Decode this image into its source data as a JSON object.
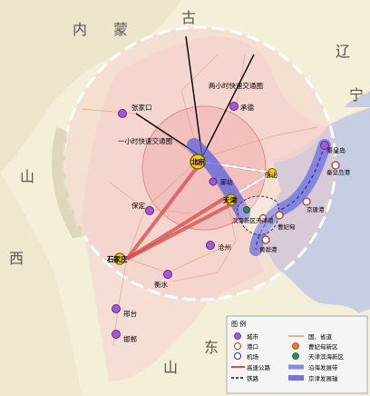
{
  "regions": [
    {
      "key": "nei",
      "text": "内"
    },
    {
      "key": "meng",
      "text": "蒙"
    },
    {
      "key": "gu",
      "text": "古"
    },
    {
      "key": "liao",
      "text": "辽"
    },
    {
      "key": "ning",
      "text": "宁"
    },
    {
      "key": "shan1",
      "text": "山"
    },
    {
      "key": "xi",
      "text": "西"
    },
    {
      "key": "shan2",
      "text": "山"
    },
    {
      "key": "dong",
      "text": "东"
    }
  ],
  "zones": {
    "two_hour": "两小时快速交通圈",
    "one_hour": "一小时快速交通圈"
  },
  "cities": [
    {
      "key": "zhangjiakou",
      "name": "张家口"
    },
    {
      "key": "chengde",
      "name": "承德"
    },
    {
      "key": "beijing",
      "name": "北京"
    },
    {
      "key": "langfang",
      "name": "廊坊"
    },
    {
      "key": "tangshan",
      "name": "唐山"
    },
    {
      "key": "tianjin",
      "name": "天津"
    },
    {
      "key": "qinhuangdao",
      "name": "秦皇岛"
    },
    {
      "key": "baoding",
      "name": "保定"
    },
    {
      "key": "cangzhou",
      "name": "沧州"
    },
    {
      "key": "shijiazhuang",
      "name": "石家庄"
    },
    {
      "key": "hengshui",
      "name": "衡水"
    },
    {
      "key": "xingtai",
      "name": "邢台"
    },
    {
      "key": "handan",
      "name": "邯郸"
    }
  ],
  "ports": [
    {
      "key": "qhd_port",
      "name": "秦皇岛港"
    },
    {
      "key": "jingtang",
      "name": "京唐港"
    },
    {
      "key": "caofeidian",
      "name": "曹妃甸"
    },
    {
      "key": "tianjin_port",
      "name": "天津港"
    },
    {
      "key": "huanghua",
      "name": "黄骅港"
    }
  ],
  "new_area": {
    "name": "滨海新区"
  },
  "new_area2": {
    "name": "天津港"
  },
  "legend": {
    "title": "图  例",
    "items": [
      {
        "key": "city",
        "label": "城市"
      },
      {
        "key": "road",
        "label": "国、省道"
      },
      {
        "key": "port",
        "label": "港口"
      },
      {
        "key": "caofei",
        "label": "曹妃甸新区"
      },
      {
        "key": "airport",
        "label": "机场"
      },
      {
        "key": "binhai",
        "label": "天津滨海新区"
      },
      {
        "key": "expressway",
        "label": "高速公路"
      },
      {
        "key": "coast",
        "label": "沿海发展带"
      },
      {
        "key": "railway",
        "label": "铁路"
      },
      {
        "key": "jingjin",
        "label": "京津发展轴"
      }
    ]
  },
  "colors": {
    "land": "#f3efd8",
    "sea": "#c8cee2",
    "city": "#a855d8",
    "axis": "#5b5fe0",
    "corridor": "#d64a4a"
  }
}
